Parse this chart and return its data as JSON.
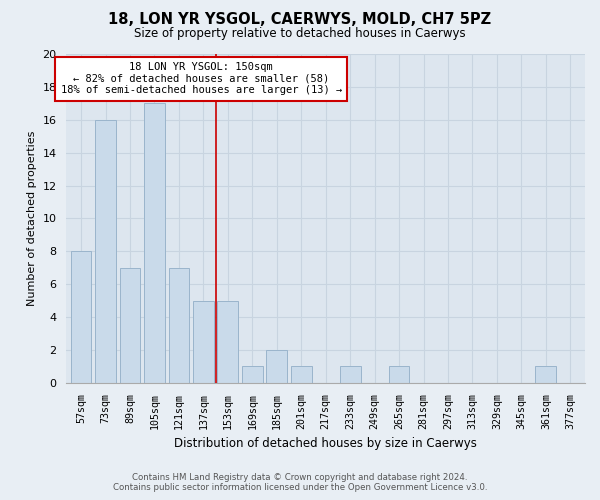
{
  "title": "18, LON YR YSGOL, CAERWYS, MOLD, CH7 5PZ",
  "subtitle": "Size of property relative to detached houses in Caerwys",
  "xlabel": "Distribution of detached houses by size in Caerwys",
  "ylabel": "Number of detached properties",
  "bar_labels": [
    "57sqm",
    "73sqm",
    "89sqm",
    "105sqm",
    "121sqm",
    "137sqm",
    "153sqm",
    "169sqm",
    "185sqm",
    "201sqm",
    "217sqm",
    "233sqm",
    "249sqm",
    "265sqm",
    "281sqm",
    "297sqm",
    "313sqm",
    "329sqm",
    "345sqm",
    "361sqm",
    "377sqm"
  ],
  "bar_values": [
    8,
    16,
    7,
    17,
    7,
    5,
    5,
    1,
    2,
    1,
    0,
    1,
    0,
    1,
    0,
    0,
    0,
    0,
    0,
    1,
    0
  ],
  "bar_color": "#c9daea",
  "bar_edge_color": "#9ab4cc",
  "grid_color": "#c8d4e0",
  "highlight_line_index": 6,
  "highlight_line_color": "#cc0000",
  "annotation_title": "18 LON YR YSGOL: 150sqm",
  "annotation_line1": "← 82% of detached houses are smaller (58)",
  "annotation_line2": "18% of semi-detached houses are larger (13) →",
  "annotation_box_color": "#ffffff",
  "annotation_box_edge_color": "#cc0000",
  "ylim": [
    0,
    20
  ],
  "yticks": [
    0,
    2,
    4,
    6,
    8,
    10,
    12,
    14,
    16,
    18,
    20
  ],
  "footer_line1": "Contains HM Land Registry data © Crown copyright and database right 2024.",
  "footer_line2": "Contains public sector information licensed under the Open Government Licence v3.0.",
  "bg_color": "#e8eef4",
  "plot_bg_color": "#dde6ef"
}
